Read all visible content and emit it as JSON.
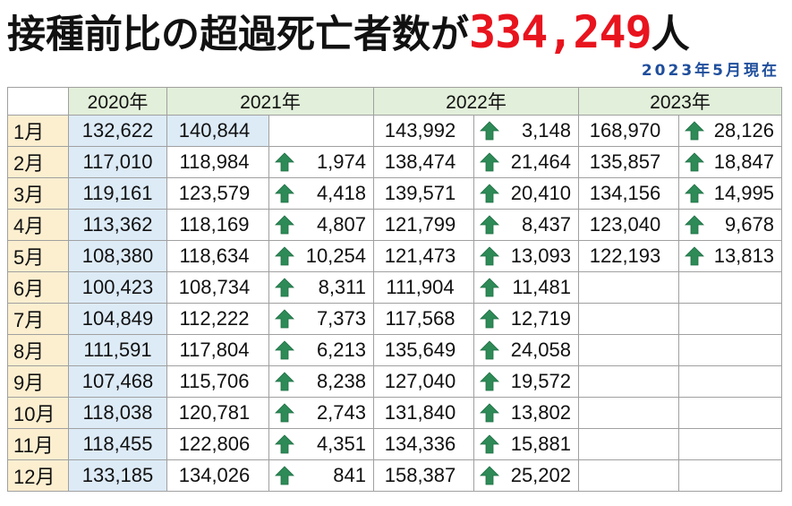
{
  "title": {
    "main": "接種前比の超過死亡者数が",
    "number": "334,249",
    "unit": "人"
  },
  "as_of": "2023年5月現在",
  "colors": {
    "title_number": "#e8141e",
    "as_of": "#1f4e9c",
    "header_bg": "#e2efda",
    "month_bg": "#fcefd0",
    "baseline_bg": "#ddebf7",
    "arrow": "#2e8b57"
  },
  "table": {
    "year_headers": [
      "2020年",
      "2021年",
      "2022年",
      "2023年"
    ],
    "arrow_icon": "up-arrow-icon",
    "rows": [
      {
        "month": "1月",
        "y2020": "132,622",
        "y2021": "140,844",
        "d2021": "",
        "y2022": "143,992",
        "d2022": "3,148",
        "y2023": "168,970",
        "d2023": "28,126"
      },
      {
        "month": "2月",
        "y2020": "117,010",
        "y2021": "118,984",
        "d2021": "1,974",
        "y2022": "138,474",
        "d2022": "21,464",
        "y2023": "135,857",
        "d2023": "18,847"
      },
      {
        "month": "3月",
        "y2020": "119,161",
        "y2021": "123,579",
        "d2021": "4,418",
        "y2022": "139,571",
        "d2022": "20,410",
        "y2023": "134,156",
        "d2023": "14,995"
      },
      {
        "month": "4月",
        "y2020": "113,362",
        "y2021": "118,169",
        "d2021": "4,807",
        "y2022": "121,799",
        "d2022": "8,437",
        "y2023": "123,040",
        "d2023": "9,678"
      },
      {
        "month": "5月",
        "y2020": "108,380",
        "y2021": "118,634",
        "d2021": "10,254",
        "y2022": "121,473",
        "d2022": "13,093",
        "y2023": "122,193",
        "d2023": "13,813"
      },
      {
        "month": "6月",
        "y2020": "100,423",
        "y2021": "108,734",
        "d2021": "8,311",
        "y2022": "111,904",
        "d2022": "11,481",
        "y2023": "",
        "d2023": ""
      },
      {
        "month": "7月",
        "y2020": "104,849",
        "y2021": "112,222",
        "d2021": "7,373",
        "y2022": "117,568",
        "d2022": "12,719",
        "y2023": "",
        "d2023": ""
      },
      {
        "month": "8月",
        "y2020": "111,591",
        "y2021": "117,804",
        "d2021": "6,213",
        "y2022": "135,649",
        "d2022": "24,058",
        "y2023": "",
        "d2023": ""
      },
      {
        "month": "9月",
        "y2020": "107,468",
        "y2021": "115,706",
        "d2021": "8,238",
        "y2022": "127,040",
        "d2022": "19,572",
        "y2023": "",
        "d2023": ""
      },
      {
        "month": "10月",
        "y2020": "118,038",
        "y2021": "120,781",
        "d2021": "2,743",
        "y2022": "131,840",
        "d2022": "13,802",
        "y2023": "",
        "d2023": ""
      },
      {
        "month": "11月",
        "y2020": "118,455",
        "y2021": "122,806",
        "d2021": "4,351",
        "y2022": "134,336",
        "d2022": "15,881",
        "y2023": "",
        "d2023": ""
      },
      {
        "month": "12月",
        "y2020": "133,185",
        "y2021": "134,026",
        "d2021": "841",
        "y2022": "158,387",
        "d2022": "25,202",
        "y2023": "",
        "d2023": ""
      }
    ]
  }
}
